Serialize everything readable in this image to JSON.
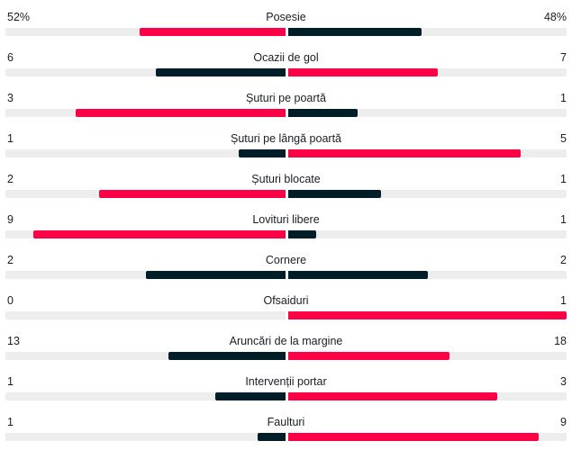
{
  "colors": {
    "winner": "#ff0046",
    "other": "#001e28",
    "track": "#ededed"
  },
  "stats": [
    {
      "label": "Posesie",
      "home": "52%",
      "away": "48%",
      "home_value": 52,
      "away_value": 48
    },
    {
      "label": "Ocazii de gol",
      "home": "6",
      "away": "7",
      "home_value": 6,
      "away_value": 7
    },
    {
      "label": "Șuturi pe poartă",
      "home": "3",
      "away": "1",
      "home_value": 3,
      "away_value": 1
    },
    {
      "label": "Șuturi pe lângă poartă",
      "home": "1",
      "away": "5",
      "home_value": 1,
      "away_value": 5
    },
    {
      "label": "Șuturi blocate",
      "home": "2",
      "away": "1",
      "home_value": 2,
      "away_value": 1
    },
    {
      "label": "Lovituri libere",
      "home": "9",
      "away": "1",
      "home_value": 9,
      "away_value": 1
    },
    {
      "label": "Cornere",
      "home": "2",
      "away": "2",
      "home_value": 2,
      "away_value": 2
    },
    {
      "label": "Ofsaiduri",
      "home": "0",
      "away": "1",
      "home_value": 0,
      "away_value": 1
    },
    {
      "label": "Aruncări de la margine",
      "home": "13",
      "away": "18",
      "home_value": 13,
      "away_value": 18
    },
    {
      "label": "Intervenții portar",
      "home": "1",
      "away": "3",
      "home_value": 1,
      "away_value": 3
    },
    {
      "label": "Faulturi",
      "home": "1",
      "away": "9",
      "home_value": 1,
      "away_value": 9
    }
  ]
}
